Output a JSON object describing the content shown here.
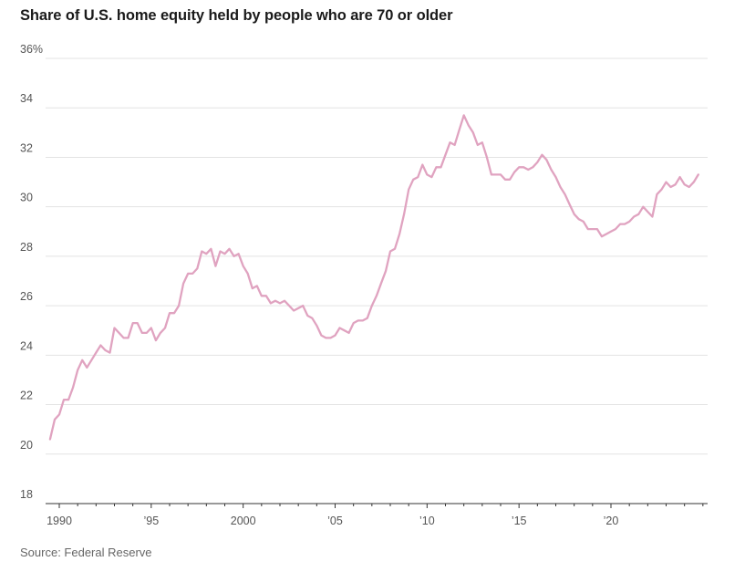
{
  "title": "Share of U.S. home equity held by people who are 70 or older",
  "source": "Source: Federal Reserve",
  "colors": {
    "line": "#e0a3c0",
    "grid": "#e3e3e3",
    "text": "#555555"
  },
  "chart_data": {
    "type": "line",
    "title": "Share of U.S. home equity held by people who are 70 or older",
    "xlabel": "",
    "ylabel": "",
    "ylim": [
      18,
      36
    ],
    "xlim": [
      1989,
      2025.5
    ],
    "y_ticks": [
      18,
      20,
      22,
      24,
      26,
      28,
      30,
      32,
      34,
      36
    ],
    "y_tick_labels": [
      "18",
      "20",
      "22",
      "24",
      "26",
      "28",
      "30",
      "32",
      "34",
      "36%"
    ],
    "x_ticks": [
      1990,
      1995,
      2000,
      2005,
      2010,
      2015,
      2020
    ],
    "x_tick_labels": [
      "1990",
      "’95",
      "2000",
      "’05",
      "’10",
      "’15",
      "’20"
    ],
    "grid": true,
    "series": [
      {
        "x": [
          1989.5,
          1989.75,
          1990.0,
          1990.25,
          1990.5,
          1990.75,
          1991.0,
          1991.25,
          1991.5,
          1991.75,
          1992.0,
          1992.25,
          1992.5,
          1992.75,
          1993.0,
          1993.25,
          1993.5,
          1993.75,
          1994.0,
          1994.25,
          1994.5,
          1994.75,
          1995.0,
          1995.25,
          1995.5,
          1995.75,
          1996.0,
          1996.25,
          1996.5,
          1996.75,
          1997.0,
          1997.25,
          1997.5,
          1997.75,
          1998.0,
          1998.25,
          1998.5,
          1998.75,
          1999.0,
          1999.25,
          1999.5,
          1999.75,
          2000.0,
          2000.25,
          2000.5,
          2000.75,
          2001.0,
          2001.25,
          2001.5,
          2001.75,
          2002.0,
          2002.25,
          2002.5,
          2002.75,
          2003.0,
          2003.25,
          2003.5,
          2003.75,
          2004.0,
          2004.25,
          2004.5,
          2004.75,
          2005.0,
          2005.25,
          2005.5,
          2005.75,
          2006.0,
          2006.25,
          2006.5,
          2006.75,
          2007.0,
          2007.25,
          2007.5,
          2007.75,
          2008.0,
          2008.25,
          2008.5,
          2008.75,
          2009.0,
          2009.25,
          2009.5,
          2009.75,
          2010.0,
          2010.25,
          2010.5,
          2010.75,
          2011.0,
          2011.25,
          2011.5,
          2011.75,
          2012.0,
          2012.25,
          2012.5,
          2012.75,
          2013.0,
          2013.25,
          2013.5,
          2013.75,
          2014.0,
          2014.25,
          2014.5,
          2014.75,
          2015.0,
          2015.25,
          2015.5,
          2015.75,
          2016.0,
          2016.25,
          2016.5,
          2016.75,
          2017.0,
          2017.25,
          2017.5,
          2017.75,
          2018.0,
          2018.25,
          2018.5,
          2018.75,
          2019.0,
          2019.25,
          2019.5,
          2019.75,
          2020.0,
          2020.25,
          2020.5,
          2020.75,
          2021.0,
          2021.25,
          2021.5,
          2021.75,
          2022.0,
          2022.25,
          2022.5,
          2022.75,
          2023.0,
          2023.25,
          2023.5,
          2023.75,
          2024.0,
          2024.25,
          2024.5,
          2024.75
        ],
        "y": [
          20.6,
          21.4,
          21.6,
          22.2,
          22.2,
          22.7,
          23.4,
          23.8,
          23.5,
          23.8,
          24.1,
          24.4,
          24.2,
          24.1,
          25.1,
          24.9,
          24.7,
          24.7,
          25.3,
          25.3,
          24.9,
          24.9,
          25.1,
          24.6,
          24.9,
          25.1,
          25.7,
          25.7,
          26.0,
          26.9,
          27.3,
          27.3,
          27.5,
          28.2,
          28.1,
          28.3,
          27.6,
          28.2,
          28.1,
          28.3,
          28.0,
          28.1,
          27.6,
          27.3,
          26.7,
          26.8,
          26.4,
          26.4,
          26.1,
          26.2,
          26.1,
          26.2,
          26.0,
          25.8,
          25.9,
          26.0,
          25.6,
          25.5,
          25.2,
          24.8,
          24.7,
          24.7,
          24.8,
          25.1,
          25.0,
          24.9,
          25.3,
          25.4,
          25.4,
          25.5,
          26.0,
          26.4,
          26.9,
          27.4,
          28.2,
          28.3,
          28.9,
          29.7,
          30.7,
          31.1,
          31.2,
          31.7,
          31.3,
          31.2,
          31.6,
          31.6,
          32.1,
          32.6,
          32.5,
          33.1,
          33.7,
          33.3,
          33.0,
          32.5,
          32.6,
          32.0,
          31.3,
          31.3,
          31.3,
          31.1,
          31.1,
          31.4,
          31.6,
          31.6,
          31.5,
          31.6,
          31.8,
          32.1,
          31.9,
          31.5,
          31.2,
          30.8,
          30.5,
          30.1,
          29.7,
          29.5,
          29.4,
          29.1,
          29.1,
          29.1,
          28.8,
          28.9,
          29.0,
          29.1,
          29.3,
          29.3,
          29.4,
          29.6,
          29.7,
          30.0,
          29.8,
          29.6,
          30.5,
          30.7,
          31.0,
          30.8,
          30.9,
          31.2,
          30.9,
          30.8,
          31.0,
          31.3
        ]
      }
    ]
  }
}
